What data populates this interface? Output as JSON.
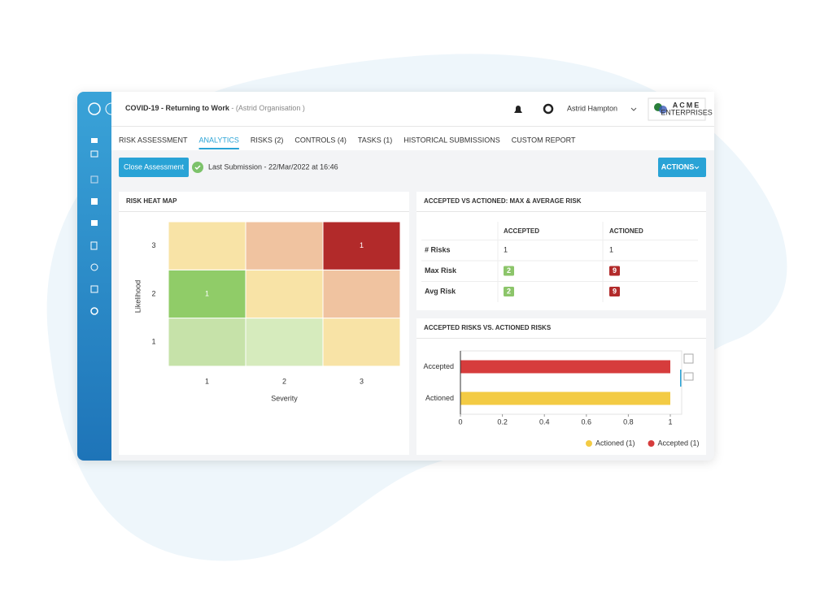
{
  "header": {
    "title": "COVID-19 - Returning to Work",
    "subtitle": "- (Astrid Organisation )",
    "user": "Astrid Hampton",
    "logo": "ACME",
    "logo_subtitle": "ENTERPRISES"
  },
  "tabs": {
    "items": [
      "RISK ASSESSMENT",
      "ANALYTICS",
      "RISKS (2)",
      "CONTROLS (4)",
      "TASKS (1)",
      "HISTORICAL SUBMISSIONS",
      "CUSTOM REPORT"
    ],
    "active": 1
  },
  "toolbar": {
    "button": "Close Assessment",
    "status": "Last Submission - 22/Mar/2022 at 16:46",
    "actions": "ACTIONS"
  },
  "table": {
    "title": "ACCEPTED VS ACTIONED: MAX & AVERAGE RISK",
    "columns": [
      "ACCEPTED",
      "ACTIONED"
    ],
    "badge_colors": [
      "#8cc56a",
      "#b22a2a"
    ],
    "rows": [
      {
        "label": "# Risks",
        "values": [
          1,
          1
        ],
        "badge": false
      },
      {
        "label": "Max Risk",
        "values": [
          2,
          9
        ],
        "badge": true
      },
      {
        "label": "Avg Risk",
        "values": [
          2,
          9
        ],
        "badge": true
      }
    ]
  },
  "chart_data": [
    {
      "type": "heatmap",
      "title": "RISK HEAT MAP",
      "x_label": "Severity",
      "y_label": "Likelihood",
      "x": [
        1,
        2,
        3
      ],
      "y": [
        1,
        2,
        3
      ],
      "values": [
        [
          null,
          null,
          null
        ],
        [
          1,
          null,
          null
        ],
        [
          null,
          null,
          1
        ]
      ],
      "colors": [
        [
          "#c6e2a9",
          "#d6ebbd",
          "#f8e3a6"
        ],
        [
          "#90cc68",
          "#f8e3a6",
          "#f0c3a0"
        ],
        [
          "#f8e3a6",
          "#f0c3a0",
          "#b22a2a"
        ]
      ]
    },
    {
      "type": "bar",
      "orientation": "horizontal",
      "title": "ACCEPTED RISKS VS. ACTIONED RISKS",
      "categories": [
        "Accepted",
        "Actioned"
      ],
      "values": [
        1,
        1
      ],
      "colors": [
        "#d63c3c",
        "#f3cb44"
      ],
      "xlim": [
        0,
        1
      ],
      "xticks": [
        0,
        0.2,
        0.4,
        0.6,
        0.8,
        1
      ],
      "legend": [
        {
          "label": "Actioned (1)",
          "color": "#f3cb44"
        },
        {
          "label": "Accepted (1)",
          "color": "#d63c3c"
        }
      ]
    }
  ]
}
